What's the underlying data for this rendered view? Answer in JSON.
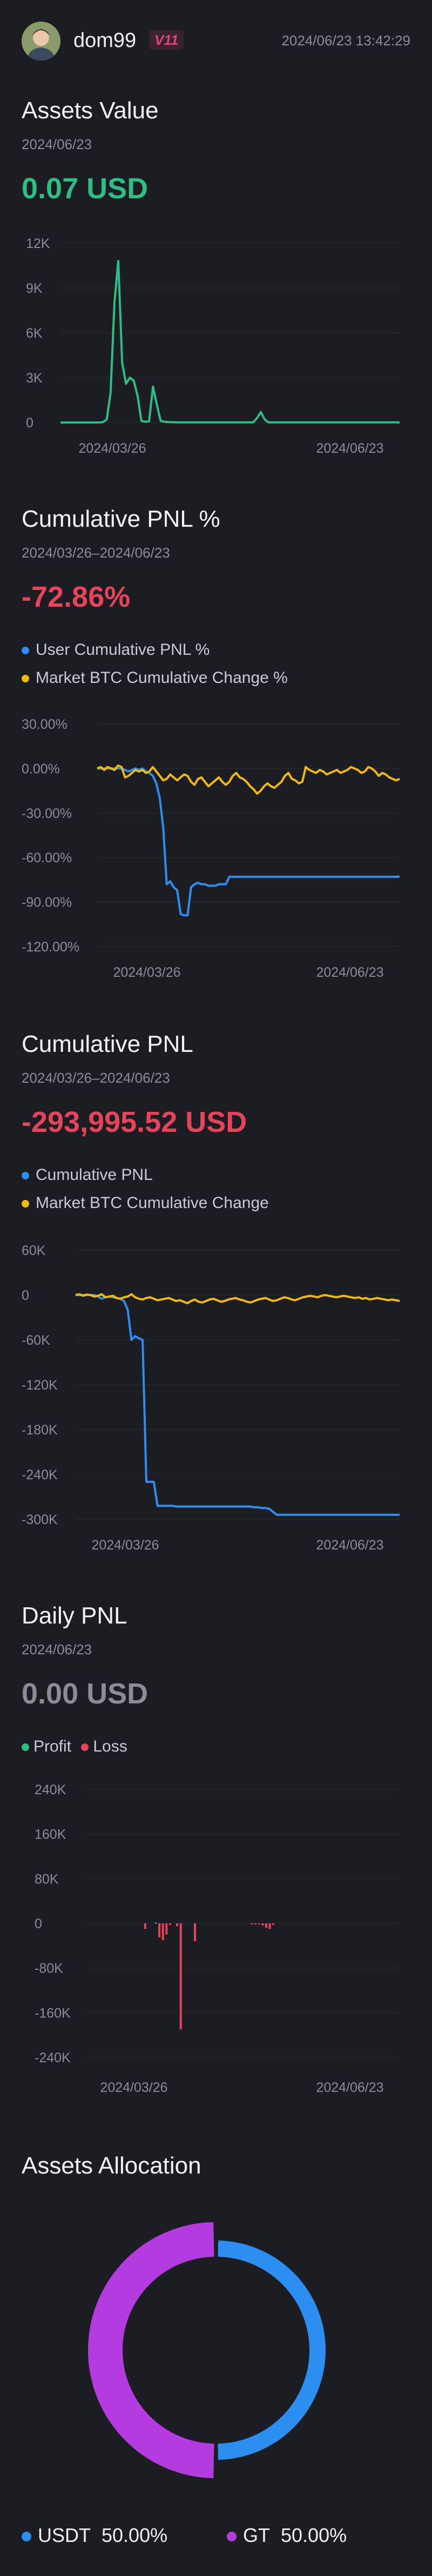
{
  "header": {
    "username": "dom99",
    "vip_badge": "V11",
    "timestamp": "2024/06/23 13:42:29",
    "avatar_icon": "user-avatar-icon"
  },
  "colors": {
    "green": "#2dbe84",
    "red": "#e5445a",
    "blue": "#2b8ef0",
    "yellow": "#f0b90b",
    "purple": "#b43be0",
    "muted": "#8a8d96"
  },
  "assets_value": {
    "title": "Assets Value",
    "date": "2024/06/23",
    "value": "0.07 USD"
  },
  "cumulative_pnl_pct": {
    "title": "Cumulative PNL %",
    "date": "2024/03/26–2024/06/23",
    "value": "-72.86%",
    "legend": [
      "User Cumulative PNL %",
      "Market BTC Cumulative Change %"
    ]
  },
  "cumulative_pnl": {
    "title": "Cumulative PNL",
    "date": "2024/03/26–2024/06/23",
    "value": "-293,995.52 USD",
    "legend": [
      "Cumulative PNL",
      "Market BTC Cumulative Change"
    ]
  },
  "daily_pnl": {
    "title": "Daily PNL",
    "date": "2024/06/23",
    "value": "0.00 USD",
    "legend": [
      "Profit",
      "Loss"
    ]
  },
  "assets_allocation": {
    "title": "Assets Allocation",
    "items": [
      {
        "name": "USDT",
        "percent": "50.00%"
      },
      {
        "name": "GT",
        "percent": "50.00%"
      }
    ]
  },
  "chart_data": [
    {
      "type": "line",
      "id": "assets-value",
      "yticks": [
        "12K",
        "9K",
        "6K",
        "3K",
        "0"
      ],
      "ylim": [
        0,
        12000
      ],
      "xticks": [
        "2024/03/26",
        "2024/06/23"
      ],
      "series": [
        {
          "values": [
            0,
            0,
            0,
            0,
            0,
            0,
            0,
            0,
            0,
            0,
            0,
            20,
            200,
            2000,
            8000,
            10800,
            4000,
            2600,
            3000,
            2800,
            1800,
            100,
            50,
            80,
            2400,
            1200,
            100,
            50,
            30,
            20,
            10,
            10,
            10,
            10,
            10,
            10,
            10,
            10,
            10,
            10,
            10,
            10,
            10,
            10,
            10,
            10,
            10,
            10,
            10,
            10,
            10,
            300,
            700,
            200,
            10,
            10,
            10,
            10,
            10,
            10,
            10,
            10,
            10,
            10,
            10,
            10,
            10,
            10,
            10,
            10,
            10,
            10,
            10,
            10,
            10,
            10,
            10,
            10,
            10,
            10,
            10,
            10,
            10,
            10,
            10,
            10,
            10,
            10,
            0.07
          ]
        }
      ]
    },
    {
      "type": "line",
      "id": "cumulative-pnl-pct",
      "yticks": [
        "30.00%",
        "0.00%",
        "-30.00%",
        "-60.00%",
        "-90.00%",
        "-120.00%"
      ],
      "ylim": [
        -120,
        30
      ],
      "xticks": [
        "2024/03/26",
        "2024/06/23"
      ],
      "series": [
        {
          "name": "User Cumulative PNL %",
          "values": [
            0,
            0,
            0,
            0,
            0,
            0,
            0,
            0,
            -1,
            -2,
            -1,
            0,
            -1,
            0,
            -2,
            -3,
            -5,
            -10,
            -20,
            -40,
            -78,
            -76,
            -80,
            -82,
            -98,
            -99,
            -99,
            -80,
            -78,
            -77,
            -78,
            -78,
            -79,
            -79,
            -79,
            -78,
            -78,
            -78,
            -73,
            -73,
            -73,
            -73,
            -73,
            -73,
            -73,
            -73,
            -73,
            -73,
            -73,
            -73,
            -73,
            -73,
            -73,
            -73,
            -73,
            -73,
            -73,
            -73,
            -73,
            -73,
            -73,
            -73,
            -73,
            -73,
            -73,
            -73,
            -73,
            -73,
            -73,
            -73,
            -73,
            -73,
            -73,
            -73,
            -73,
            -73,
            -73,
            -73,
            -73,
            -73,
            -73,
            -73,
            -73,
            -73,
            -73,
            -73,
            -73,
            -72.86
          ]
        },
        {
          "name": "Market BTC Cumulative Change %",
          "values": [
            0,
            1,
            -1,
            1,
            0,
            -1,
            2,
            1,
            -6,
            -5,
            -3,
            -1,
            -2,
            -1,
            -3,
            -2,
            1,
            -2,
            -5,
            -8,
            -7,
            -4,
            -6,
            -8,
            -6,
            -4,
            -5,
            -9,
            -11,
            -7,
            -6,
            -9,
            -12,
            -10,
            -8,
            -6,
            -9,
            -11,
            -9,
            -5,
            -3,
            -6,
            -7,
            -9,
            -12,
            -14,
            -17,
            -15,
            -12,
            -10,
            -12,
            -13,
            -11,
            -9,
            -5,
            -3,
            -7,
            -8,
            -10,
            -9,
            1,
            -1,
            -2,
            -3,
            -1,
            -2,
            -4,
            -3,
            -2,
            -1,
            -3,
            -2,
            -1,
            1,
            0,
            -1,
            -3,
            -2,
            1,
            0,
            -2,
            -5,
            -3,
            -4,
            -6,
            -7,
            -8,
            -7
          ]
        }
      ]
    },
    {
      "type": "line",
      "id": "cumulative-pnl",
      "yticks": [
        "60K",
        "0",
        "-60K",
        "-120K",
        "-180K",
        "-240K",
        "-300K"
      ],
      "ylim": [
        -300000,
        60000
      ],
      "xticks": [
        "2024/03/26",
        "2024/06/23"
      ],
      "series": [
        {
          "name": "Cumulative PNL",
          "values": [
            0,
            0,
            0,
            0,
            0,
            0,
            -2000,
            -5000,
            -3000,
            -2000,
            -3000,
            -4000,
            -5000,
            -8000,
            -20000,
            -60000,
            -55000,
            -58000,
            -60000,
            -250000,
            -250000,
            -250000,
            -282000,
            -282000,
            -282000,
            -282000,
            -282000,
            -283000,
            -283000,
            -283000,
            -283000,
            -283000,
            -283000,
            -283000,
            -283000,
            -283000,
            -283000,
            -283000,
            -283000,
            -283000,
            -283000,
            -283000,
            -283000,
            -283000,
            -283000,
            -283000,
            -283000,
            -283000,
            -284000,
            -284000,
            -285000,
            -285000,
            -286000,
            -290000,
            -294000,
            -294000,
            -294000,
            -294000,
            -294000,
            -294000,
            -294000,
            -294000,
            -294000,
            -294000,
            -294000,
            -294000,
            -294000,
            -294000,
            -294000,
            -294000,
            -294000,
            -294000,
            -294000,
            -294000,
            -294000,
            -294000,
            -294000,
            -294000,
            -294000,
            -294000,
            -294000,
            -294000,
            -294000,
            -294000,
            -294000,
            -294000,
            -294000,
            -293995.52
          ]
        },
        {
          "name": "Market BTC Cumulative Change",
          "values": [
            0,
            1000,
            -1000,
            500,
            0,
            -2000,
            -1000,
            1000,
            -3000,
            -2000,
            -1000,
            -4000,
            -5000,
            -3000,
            -2000,
            1000,
            -3000,
            -5000,
            -6000,
            -4000,
            -3000,
            -5000,
            -7000,
            -6000,
            -5000,
            -4000,
            -6000,
            -8000,
            -7000,
            -9000,
            -11000,
            -8000,
            -6000,
            -9000,
            -10000,
            -8000,
            -6000,
            -5000,
            -7000,
            -9000,
            -8000,
            -6000,
            -5000,
            -4000,
            -6000,
            -7000,
            -9000,
            -10000,
            -8000,
            -6000,
            -5000,
            -4000,
            -6000,
            -8000,
            -7000,
            -5000,
            -3000,
            -4000,
            -6000,
            -7000,
            -5000,
            -3000,
            -2000,
            -1000,
            -2000,
            -3000,
            -1000,
            0,
            -1000,
            -2000,
            -3000,
            -2000,
            -1000,
            -2000,
            -3000,
            -4000,
            -3000,
            -5000,
            -4000,
            -6000,
            -5000,
            -4000,
            -5000,
            -6000,
            -7000,
            -6000,
            -7000,
            -8000
          ]
        }
      ]
    },
    {
      "type": "bar",
      "id": "daily-pnl",
      "yticks": [
        "240K",
        "160K",
        "80K",
        "0",
        "-80K",
        "-160K",
        "-240K"
      ],
      "ylim": [
        -240000,
        240000
      ],
      "xticks": [
        "2024/03/26",
        "2024/06/23"
      ],
      "series": [
        {
          "name": "Profit",
          "values": [
            0,
            0,
            0,
            0,
            0,
            0,
            0,
            0,
            0,
            0,
            0,
            0,
            0,
            0,
            0,
            0,
            0,
            0,
            0,
            1500,
            0,
            0,
            0,
            0,
            0,
            0,
            0,
            0,
            0,
            0,
            0,
            0,
            0,
            0,
            0,
            0,
            0,
            0,
            0,
            0,
            0,
            0,
            0,
            0,
            0,
            0,
            0,
            0,
            0,
            0,
            0,
            0,
            0,
            0,
            0,
            0,
            0,
            0,
            0,
            0,
            0,
            0,
            0,
            0,
            0,
            0,
            0,
            0,
            0,
            0,
            0,
            0,
            0,
            0,
            0,
            0,
            0,
            0,
            0,
            0,
            0,
            0,
            0,
            0,
            0,
            0,
            0,
            0
          ]
        },
        {
          "name": "Loss",
          "values": [
            0,
            0,
            0,
            0,
            0,
            0,
            0,
            0,
            0,
            0,
            0,
            0,
            0,
            0,
            0,
            0,
            -10000,
            0,
            0,
            0,
            -25000,
            -30000,
            -20000,
            -3000,
            0,
            -5000,
            -190000,
            0,
            0,
            0,
            -32000,
            0,
            0,
            0,
            0,
            0,
            0,
            0,
            0,
            0,
            0,
            0,
            0,
            0,
            0,
            0,
            -1000,
            -2000,
            -1000,
            -4000,
            -8000,
            -10000,
            -3000,
            0,
            0,
            0,
            0,
            0,
            0,
            0,
            0,
            0,
            0,
            0,
            0,
            0,
            0,
            0,
            0,
            0,
            0,
            0,
            0,
            0,
            0,
            0,
            0,
            0,
            0,
            0,
            0,
            0,
            0,
            0,
            0,
            0,
            0,
            0
          ]
        }
      ]
    },
    {
      "type": "pie",
      "id": "assets-allocation",
      "labels": [
        "USDT",
        "GT"
      ],
      "values": [
        50,
        50
      ]
    }
  ]
}
